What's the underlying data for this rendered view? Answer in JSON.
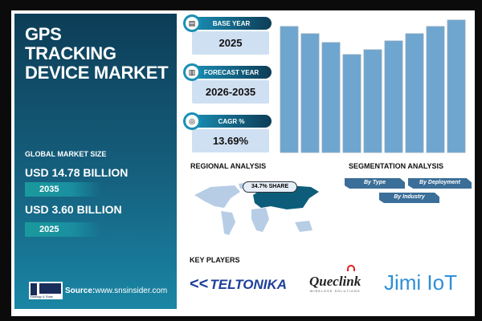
{
  "left_panel": {
    "title_lines": [
      "GPS",
      "TRACKING",
      "DEVICE MARKET"
    ],
    "global_market_size_label": "GLOBAL MARKET SIZE",
    "forecast_value": "USD 14.78 BILLION",
    "forecast_year": "2035",
    "base_value": "USD 3.60 BILLION",
    "base_year": "2025",
    "source_label": "Source:",
    "source_url": "www.snsinsider.com",
    "logo_text": "S&S INSIDER Strategy & Stats"
  },
  "stats": [
    {
      "label": "BASE YEAR",
      "value": "2025",
      "icon": "document-icon"
    },
    {
      "label": "FORECAST YEAR",
      "value": "2026-2035",
      "icon": "bar-chart-icon"
    },
    {
      "label": "CAGR %",
      "value": "13.69%",
      "icon": "growth-icon"
    }
  ],
  "chart_data": {
    "type": "bar",
    "values": [
      157,
      148,
      137,
      122,
      128,
      139,
      148,
      157,
      165
    ],
    "bar_color": "#6fa6d0",
    "xlabel": "",
    "ylabel": ""
  },
  "regional": {
    "heading": "REGIONAL ANALYSIS",
    "share": "34.7% SHARE",
    "highlight_color": "#0d5d7a",
    "map_color": "#b7cde6"
  },
  "segmentation": {
    "heading": "SEGMENTATION ANALYSIS",
    "items": [
      "By Type",
      "By Deployment",
      "By Industry"
    ]
  },
  "key_players": {
    "heading": "KEY PLAYERS",
    "players": [
      "TELTONIKA",
      "Queclink",
      "Jimi IoT"
    ],
    "queclink_tagline": "WIRELESS SOLUTIONS"
  }
}
